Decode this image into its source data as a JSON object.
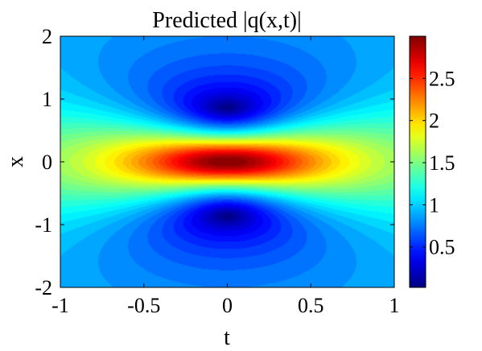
{
  "chart_data": {
    "type": "heatmap",
    "title": "Predicted |q(x,t)|",
    "xlabel": "t",
    "ylabel": "x",
    "xlim": [
      -1,
      1
    ],
    "ylim": [
      -2,
      2
    ],
    "x_ticks": [
      -1,
      -0.5,
      0,
      0.5,
      1
    ],
    "x_tick_labels": [
      "-1",
      "-0.5",
      "0",
      "0.5",
      "1"
    ],
    "y_ticks": [
      -2,
      -1,
      0,
      1,
      2
    ],
    "y_tick_labels": [
      "-2",
      "-1",
      "0",
      "1",
      "2"
    ],
    "colorbar": {
      "range": [
        0.02,
        3.0
      ],
      "ticks": [
        0.5,
        1,
        1.5,
        2,
        2.5
      ],
      "tick_labels": [
        "0.5",
        "1",
        "1.5",
        "2",
        "2.5"
      ],
      "colormap": "jet"
    },
    "field": {
      "description_of_surface": "Peregrine-type rogue wave amplitude",
      "peak_value": 3.0,
      "peak_location": {
        "t": 0,
        "x": 0
      },
      "minima_value": 0.02,
      "minima_locations": [
        {
          "t": 0,
          "x": 0.87
        },
        {
          "t": 0,
          "x": -0.87
        }
      ],
      "background_value": 1.0
    }
  }
}
